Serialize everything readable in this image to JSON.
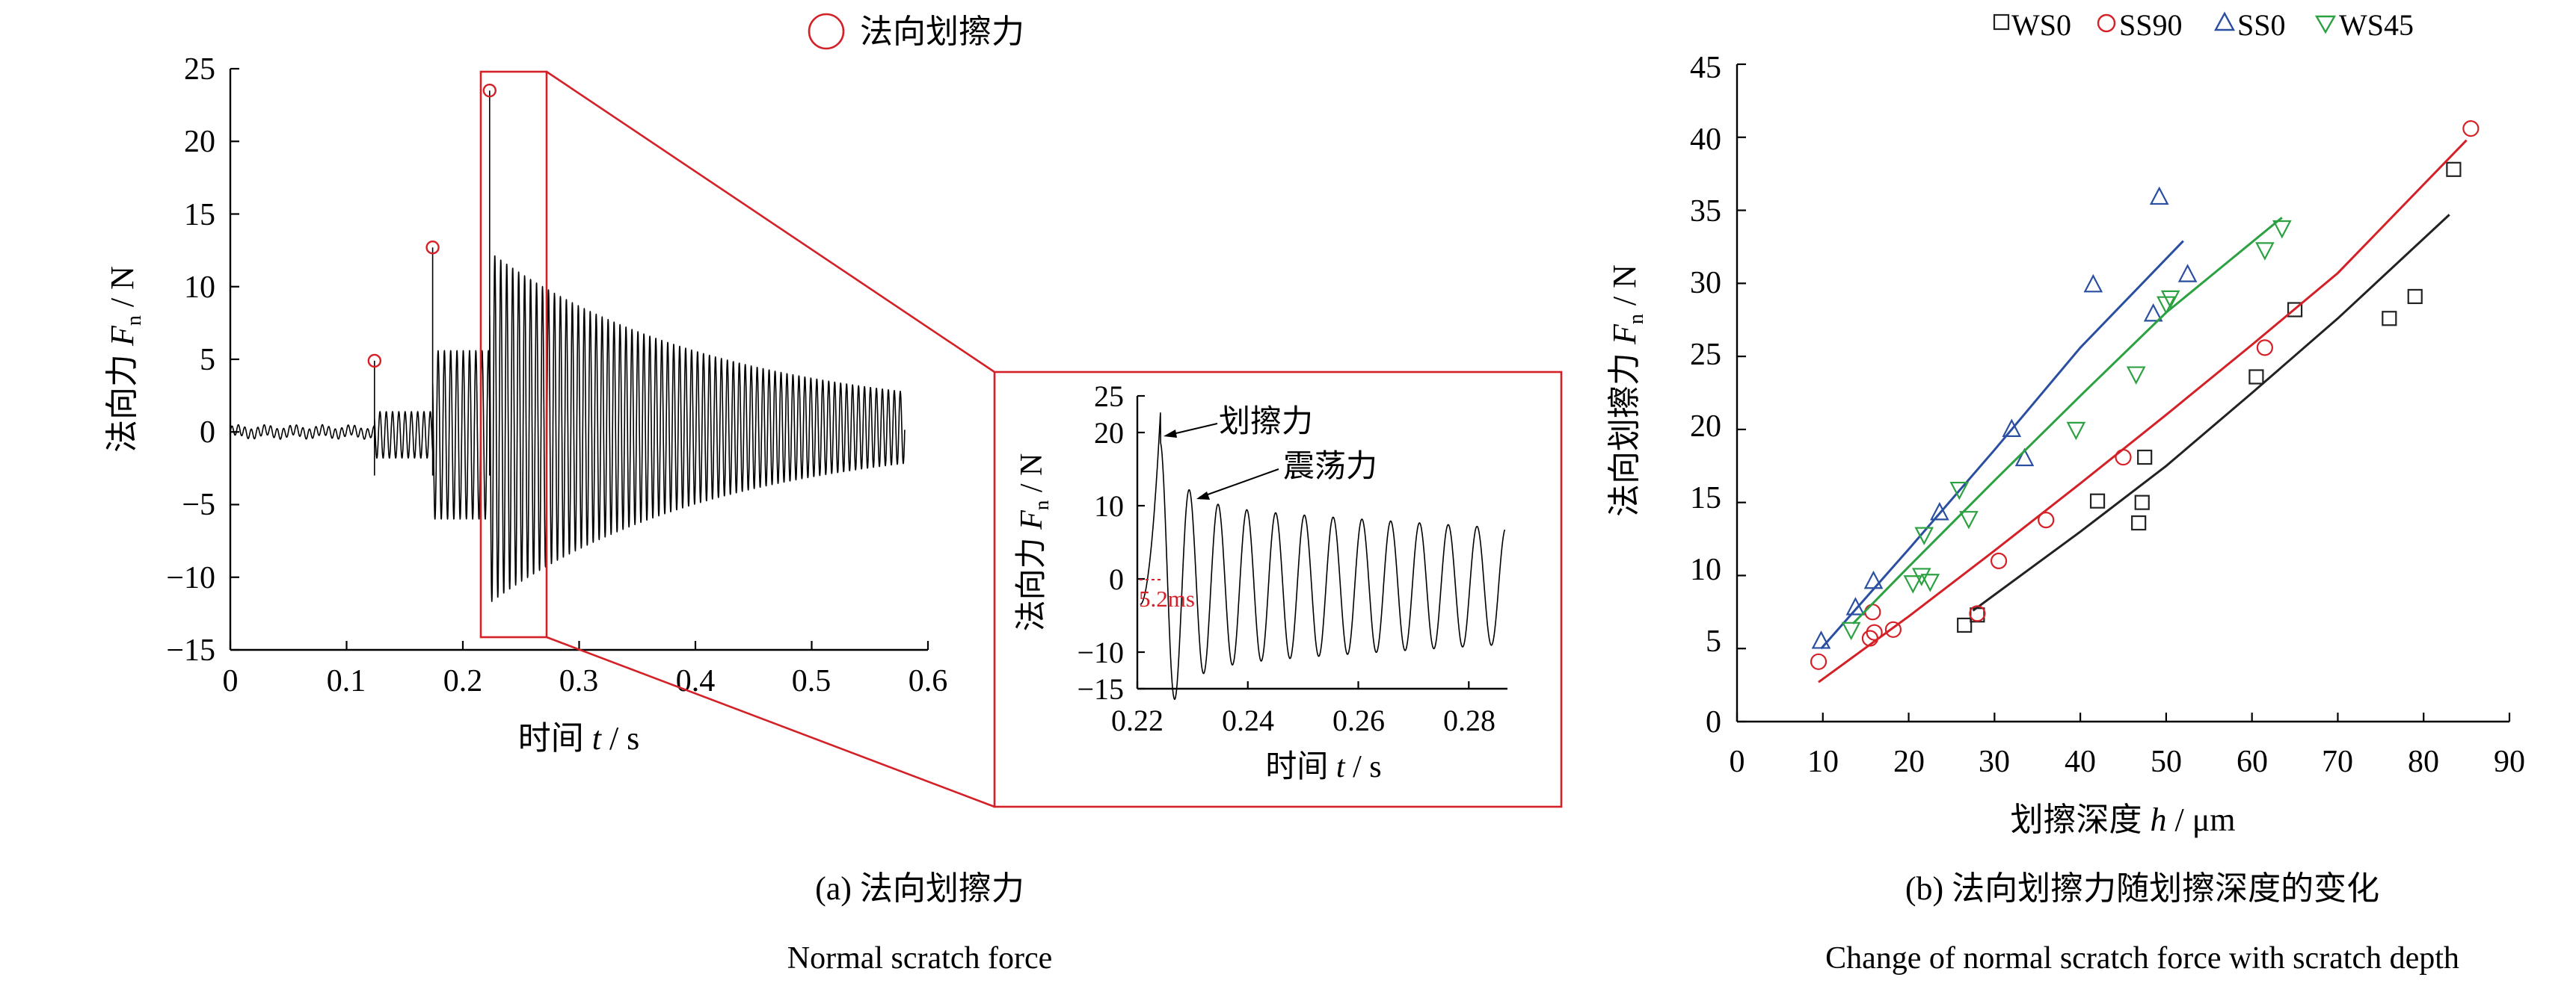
{
  "chart_data": [
    {
      "type": "line",
      "panel": "a",
      "legend": [
        {
          "marker": "open-circle",
          "label": "法向划擦力",
          "color": "#d42027"
        }
      ],
      "ylabel_prefix": "法向力",
      "ylabel_var": "F",
      "ylabel_sub": "n",
      "ylabel_unit": "/ N",
      "xlabel_prefix": "时间",
      "xlabel_var": "t",
      "xlabel_unit": "/ s",
      "xlim": [
        0,
        0.6
      ],
      "ylim": [
        -15,
        25
      ],
      "xticks": [
        "0",
        "0.1",
        "0.2",
        "0.3",
        "0.4",
        "0.5",
        "0.6"
      ],
      "yticks": [
        "25",
        "20",
        "15",
        "10",
        "5",
        "0",
        "−5",
        "−10",
        "−15"
      ],
      "peaks": [
        {
          "x": 0.124,
          "y": 4.9
        },
        {
          "x": 0.174,
          "y": 12.7
        },
        {
          "x": 0.223,
          "y": 23.5
        }
      ],
      "signal": {
        "noise_end": 0.124,
        "end": 0.58,
        "segments": [
          {
            "start": 0.124,
            "end": 0.174,
            "freq_hz": 185,
            "amp": 1.6
          },
          {
            "start": 0.174,
            "end": 0.223,
            "freq_hz": 185,
            "amp": 5.8
          },
          {
            "start": 0.223,
            "end": 0.58,
            "freq_hz": 195,
            "amp": 11.5,
            "decay": 5.1
          }
        ]
      },
      "zoom_window": {
        "x": [
          0.216,
          0.272
        ],
        "y": [
          -14,
          24.5
        ]
      },
      "caption": "(a) 法向划擦力",
      "caption_en": "Normal scratch force"
    },
    {
      "type": "line",
      "panel": "a-inset",
      "ylabel_prefix": "法向力",
      "ylabel_var": "F",
      "ylabel_sub": "n",
      "ylabel_unit": "/ N",
      "xlabel_prefix": "时间",
      "xlabel_var": "t",
      "xlabel_unit": "/ s",
      "xlim": [
        0.22,
        0.287
      ],
      "ylim": [
        -15,
        25
      ],
      "xticks": [
        "0.22",
        "0.24",
        "0.26",
        "0.28"
      ],
      "yticks": [
        "25",
        "20",
        "10",
        "0",
        "−10",
        "−15"
      ],
      "annotations": [
        "划擦力",
        "震荡力",
        "5.2ms"
      ]
    },
    {
      "type": "scatter",
      "panel": "b",
      "ylabel_prefix": "法向划擦力",
      "ylabel_var": "F",
      "ylabel_sub": "n",
      "ylabel_unit": "/ N",
      "xlabel_prefix": "划擦深度",
      "xlabel_var": "h",
      "xlabel_unit": "/ μm",
      "xlim": [
        0,
        90
      ],
      "ylim": [
        0,
        45
      ],
      "xticks": [
        "0",
        "10",
        "20",
        "30",
        "40",
        "50",
        "60",
        "70",
        "80",
        "90"
      ],
      "yticks": [
        "45",
        "40",
        "35",
        "30",
        "25",
        "20",
        "15",
        "10",
        "5",
        "0"
      ],
      "series": [
        {
          "name": "WS0",
          "marker": "square",
          "color": "#222222",
          "points": [
            [
              26.5,
              6.6
            ],
            [
              28.0,
              7.3
            ],
            [
              42.0,
              15.1
            ],
            [
              46.8,
              13.6
            ],
            [
              47.2,
              15.0
            ],
            [
              47.5,
              18.1
            ],
            [
              60.5,
              23.6
            ],
            [
              65.0,
              28.2
            ],
            [
              76.0,
              27.6
            ],
            [
              79.0,
              29.1
            ],
            [
              83.5,
              37.8
            ]
          ],
          "fit": [
            [
              27.5,
              7.6
            ],
            [
              40,
              13.0
            ],
            [
              50,
              17.5
            ],
            [
              60,
              22.5
            ],
            [
              70,
              27.6
            ],
            [
              83,
              34.7
            ]
          ]
        },
        {
          "name": "SS90",
          "marker": "circle",
          "color": "#d42027",
          "points": [
            [
              9.5,
              4.1
            ],
            [
              15.5,
              5.7
            ],
            [
              16.0,
              6.1
            ],
            [
              15.8,
              7.5
            ],
            [
              18.2,
              6.3
            ],
            [
              28.0,
              7.4
            ],
            [
              30.5,
              11.0
            ],
            [
              36.0,
              13.8
            ],
            [
              45.0,
              18.1
            ],
            [
              61.5,
              25.6
            ],
            [
              85.5,
              40.6
            ]
          ],
          "fit": [
            [
              9.5,
              2.7
            ],
            [
              20,
              7.2
            ],
            [
              30,
              11.7
            ],
            [
              40,
              16.3
            ],
            [
              50,
              21.0
            ],
            [
              60,
              25.8
            ],
            [
              70,
              30.7
            ],
            [
              85,
              39.8
            ]
          ]
        },
        {
          "name": "SS0",
          "marker": "triangle-up",
          "color": "#2a4fa1",
          "points": [
            [
              9.8,
              5.5
            ],
            [
              13.8,
              7.8
            ],
            [
              15.9,
              9.6
            ],
            [
              23.6,
              14.3
            ],
            [
              32.0,
              20.0
            ],
            [
              33.5,
              18.0
            ],
            [
              41.5,
              29.9
            ],
            [
              48.5,
              27.9
            ],
            [
              49.2,
              35.9
            ],
            [
              52.5,
              30.6
            ]
          ],
          "fit": [
            [
              9.8,
              5.0
            ],
            [
              20,
              11.8
            ],
            [
              30,
              18.6
            ],
            [
              40,
              25.6
            ],
            [
              52,
              32.9
            ]
          ]
        },
        {
          "name": "WS45",
          "marker": "triangle-down",
          "color": "#2ca141",
          "points": [
            [
              13.3,
              6.3
            ],
            [
              20.5,
              9.5
            ],
            [
              21.5,
              10.0
            ],
            [
              22.5,
              9.6
            ],
            [
              21.8,
              12.8
            ],
            [
              25.9,
              15.9
            ],
            [
              27.0,
              13.9
            ],
            [
              39.5,
              20.0
            ],
            [
              46.5,
              23.8
            ],
            [
              50.0,
              28.6
            ],
            [
              50.5,
              29.0
            ],
            [
              61.5,
              32.3
            ],
            [
              63.5,
              33.8
            ]
          ],
          "fit": [
            [
              13.5,
              6.7
            ],
            [
              20,
              10.6
            ],
            [
              30,
              16.5
            ],
            [
              40,
              22.3
            ],
            [
              50,
              28.0
            ],
            [
              63.5,
              34.5
            ]
          ]
        }
      ],
      "legend_position": "top",
      "caption": "(b) 法向划擦力随划擦深度的变化",
      "caption_en": "Change of normal scratch force with scratch depth"
    }
  ]
}
